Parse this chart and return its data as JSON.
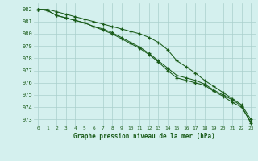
{
  "title": "Graphe pression niveau de la mer (hPa)",
  "background_color": "#d4f0ee",
  "grid_color": "#aacfcc",
  "line_color": "#1a5c1a",
  "x_labels": [
    "0",
    "1",
    "2",
    "3",
    "4",
    "5",
    "6",
    "7",
    "8",
    "9",
    "10",
    "11",
    "12",
    "13",
    "14",
    "15",
    "16",
    "17",
    "18",
    "19",
    "20",
    "21",
    "22",
    "23"
  ],
  "ylim": [
    972.5,
    982.5
  ],
  "yticks": [
    973,
    974,
    975,
    976,
    977,
    978,
    979,
    980,
    981,
    982
  ],
  "series1": [
    982.0,
    981.9,
    981.5,
    981.3,
    981.1,
    980.9,
    980.6,
    980.4,
    980.1,
    979.7,
    979.3,
    978.9,
    978.4,
    977.8,
    977.2,
    976.6,
    976.4,
    976.2,
    975.9,
    975.4,
    975.0,
    974.6,
    974.1,
    972.7
  ],
  "series2": [
    982.0,
    982.0,
    981.8,
    981.6,
    981.4,
    981.2,
    981.0,
    980.8,
    980.6,
    980.4,
    980.2,
    980.0,
    979.7,
    979.3,
    978.7,
    977.8,
    977.3,
    976.8,
    976.2,
    975.7,
    975.2,
    974.7,
    974.2,
    973.0
  ],
  "series3": [
    982.0,
    981.9,
    981.5,
    981.3,
    981.1,
    980.9,
    980.6,
    980.3,
    980.0,
    979.6,
    979.2,
    978.8,
    978.3,
    977.7,
    977.0,
    976.4,
    976.2,
    976.0,
    975.8,
    975.3,
    974.9,
    974.4,
    974.0,
    972.8
  ]
}
